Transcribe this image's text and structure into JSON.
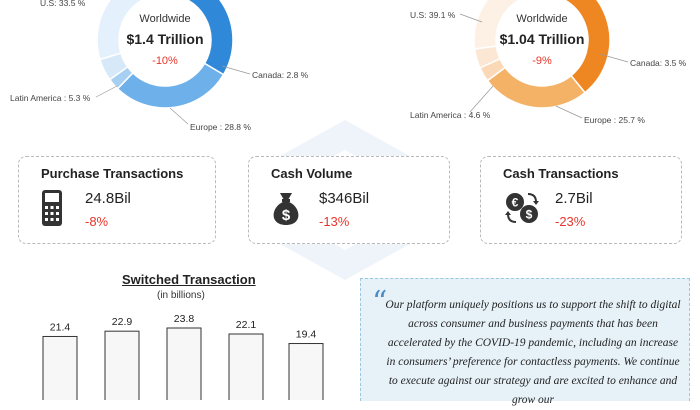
{
  "colors": {
    "red": "#e8352b",
    "donut1": [
      "#2f89d8",
      "#a6cff1",
      "#6eb0ea",
      "#d7e9f9",
      "#e4f0fb"
    ],
    "donut2": [
      "#ee8722",
      "#fcd9b6",
      "#f4b266",
      "#fbe7d3",
      "#fdf1e6"
    ]
  },
  "donut_left": {
    "center_label": "Worldwide",
    "total": "$1.4 Trillion",
    "change": "-10%",
    "labels": {
      "us": "U.S: 33.5 %",
      "canada": "Canada: 2.8 %",
      "latam": "Latin America : 5.3 %",
      "europe": "Europe : 28.8 %"
    }
  },
  "donut_right": {
    "center_label": "Worldwide",
    "total": "$1.04 Trillion",
    "change": "-9%",
    "labels": {
      "us": "U.S: 39.1 %",
      "canada": "Canada: 3.5 %",
      "latam": "Latin America : 4.6 %",
      "europe": "Europe : 25.7 %"
    }
  },
  "cards": [
    {
      "title": "Purchase Transactions",
      "value": "24.8Bil",
      "change": "-8%",
      "icon": "card-terminal-icon"
    },
    {
      "title": "Cash Volume",
      "value": "$346Bil",
      "change": "-13%",
      "icon": "money-bag-icon"
    },
    {
      "title": "Cash Transactions",
      "value": "2.7Bil",
      "change": "-23%",
      "icon": "currency-exchange-icon"
    }
  ],
  "chart_data": [
    {
      "type": "pie",
      "title": "",
      "center_text": [
        "Worldwide",
        "$1.4 Trillion",
        "-10%"
      ],
      "slices": [
        {
          "label": "U.S",
          "value": 33.5
        },
        {
          "label": "Canada",
          "value": 2.8
        },
        {
          "label": "Latin America",
          "value": 5.3
        },
        {
          "label": "Europe",
          "value": 28.8
        }
      ]
    },
    {
      "type": "pie",
      "title": "",
      "center_text": [
        "Worldwide",
        "$1.04 Trillion",
        "-9%"
      ],
      "slices": [
        {
          "label": "U.S",
          "value": 39.1
        },
        {
          "label": "Canada",
          "value": 3.5
        },
        {
          "label": "Latin America",
          "value": 4.6
        },
        {
          "label": "Europe",
          "value": 25.7
        }
      ]
    },
    {
      "type": "bar",
      "title": "Switched Transaction",
      "subtitle": "(in billions)",
      "values": [
        21.4,
        22.9,
        23.8,
        22.1,
        19.4
      ],
      "ylim": [
        0,
        25
      ]
    }
  ],
  "quote": {
    "mark": "“",
    "text": "Our platform uniquely positions us to support the shift to digital across consumer and business payments that has been accelerated by the COVID-19 pandemic, including an increase in consumers’ preference for contactless payments. We continue to execute against our strategy and are excited to enhance and grow our"
  }
}
